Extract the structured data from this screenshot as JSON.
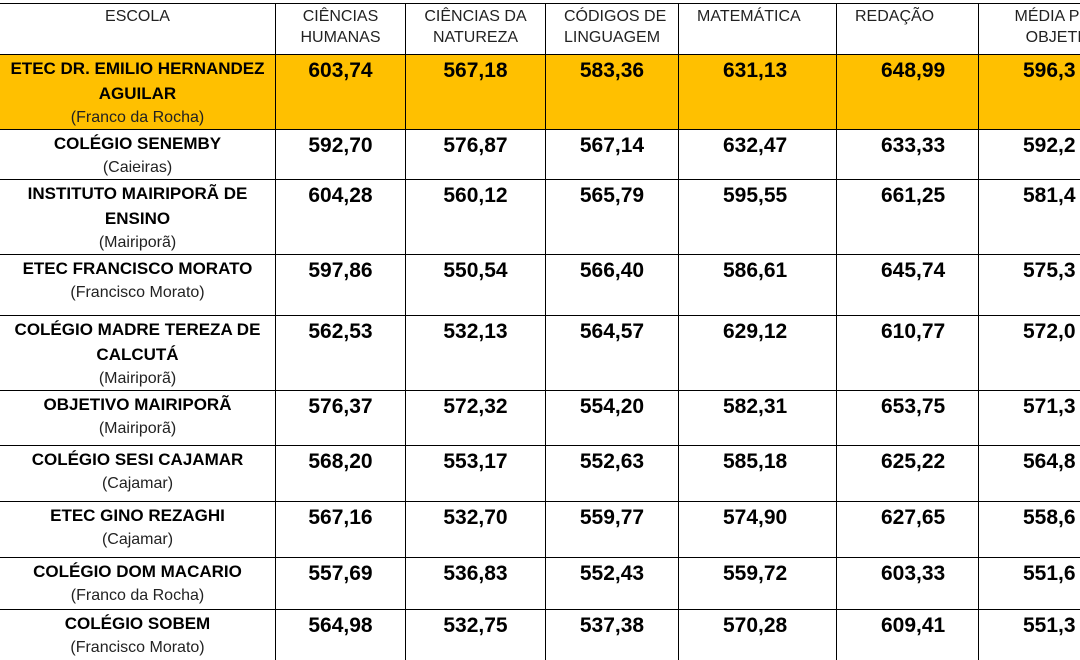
{
  "table": {
    "headers": [
      [
        "ESCOLA"
      ],
      [
        "CIÊNCIAS",
        "HUMANAS"
      ],
      [
        "CIÊNCIAS DA",
        "NATUREZA"
      ],
      [
        "CÓDIGOS DE",
        "LINGUAGEM"
      ],
      [
        "MATEMÁTICA"
      ],
      [
        "REDAÇÃO"
      ],
      [
        "MÉDIA PRO",
        "OBJETIV"
      ]
    ],
    "rows": [
      {
        "name": "ETEC DR. EMILIO HERNANDEZ AGUILAR",
        "city": "(Franco da Rocha)",
        "scores": [
          "603,74",
          "567,18",
          "583,36",
          "631,13",
          "648,99",
          "596,3"
        ],
        "highlight": true
      },
      {
        "name": "COLÉGIO SENEMBY",
        "city": "(Caieiras)",
        "scores": [
          "592,70",
          "576,87",
          "567,14",
          "632,47",
          "633,33",
          "592,2"
        ],
        "highlight": false
      },
      {
        "name": "INSTITUTO MAIRIPORÃ DE ENSINO",
        "city": "(Mairiporã)",
        "scores": [
          "604,28",
          "560,12",
          "565,79",
          "595,55",
          "661,25",
          "581,4"
        ],
        "highlight": false
      },
      {
        "name": "ETEC FRANCISCO MORATO",
        "city": "(Francisco Morato)",
        "scores": [
          "597,86",
          "550,54",
          "566,40",
          "586,61",
          "645,74",
          "575,3"
        ],
        "highlight": false
      },
      {
        "name": "COLÉGIO MADRE TEREZA DE CALCUTÁ",
        "city": "(Mairiporã)",
        "scores": [
          "562,53",
          "532,13",
          "564,57",
          "629,12",
          "610,77",
          "572,0"
        ],
        "highlight": false
      },
      {
        "name": "OBJETIVO MAIRIPORÃ",
        "city": "(Mairiporã)",
        "scores": [
          "576,37",
          "572,32",
          "554,20",
          "582,31",
          "653,75",
          "571,3"
        ],
        "highlight": false
      },
      {
        "name": "COLÉGIO SESI CAJAMAR",
        "city": "(Cajamar)",
        "scores": [
          "568,20",
          "553,17",
          "552,63",
          "585,18",
          "625,22",
          "564,8"
        ],
        "highlight": false
      },
      {
        "name": "ETEC GINO REZAGHI",
        "city": "(Cajamar)",
        "scores": [
          "567,16",
          "532,70",
          "559,77",
          "574,90",
          "627,65",
          "558,6"
        ],
        "highlight": false
      },
      {
        "name": "COLÉGIO DOM MACARIO",
        "city": "(Franco da Rocha)",
        "scores": [
          "557,69",
          "536,83",
          "552,43",
          "559,72",
          "603,33",
          "551,6"
        ],
        "highlight": false
      },
      {
        "name": "COLÉGIO SOBEM",
        "city": "(Francisco Morato)",
        "scores": [
          "564,98",
          "532,75",
          "537,38",
          "570,28",
          "609,41",
          "551,3"
        ],
        "highlight": false
      }
    ]
  }
}
